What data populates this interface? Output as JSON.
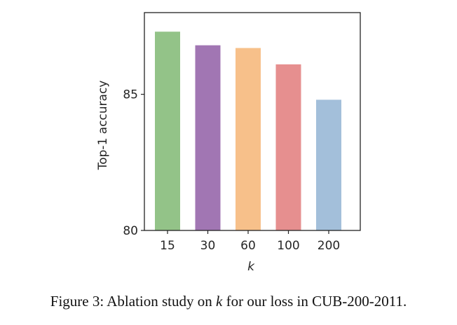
{
  "chart_data": {
    "type": "bar",
    "title": "",
    "xlabel": "k",
    "ylabel": "Top-1 accuracy",
    "categories": [
      "15",
      "30",
      "60",
      "100",
      "200"
    ],
    "values": [
      87.3,
      86.8,
      86.7,
      86.1,
      84.8
    ],
    "colors": [
      "#93c388",
      "#a176b3",
      "#f7c08a",
      "#e68f8f",
      "#a3bfda"
    ],
    "ylim": [
      80,
      88
    ],
    "yticks": [
      80,
      85
    ],
    "grid": false,
    "legend": "none"
  },
  "caption": {
    "prefix": "Figure 3: Ablation study on ",
    "variable": "k",
    "suffix": " for our loss in CUB-200-2011."
  }
}
